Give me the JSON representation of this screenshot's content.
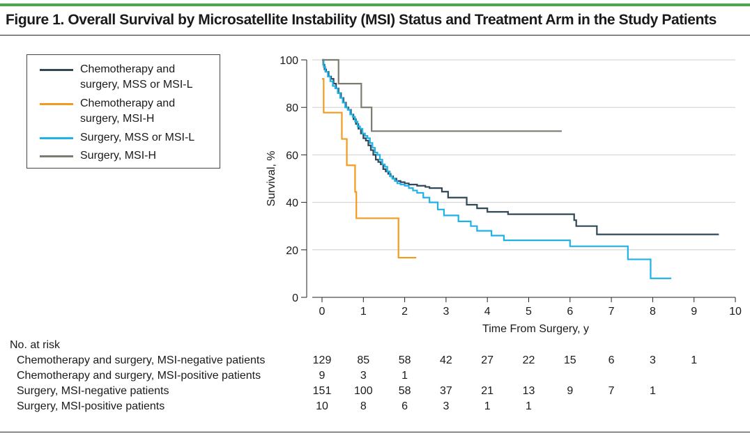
{
  "figure": {
    "title": "Figure 1. Overall Survival by Microsatellite Instability (MSI) Status and Treatment Arm in the Study Patients"
  },
  "legend": {
    "items": [
      {
        "label": "Chemotherapy and surgery, MSS or MSI-L",
        "color": "#2f4858"
      },
      {
        "label": "Chemotherapy and surgery, MSI-H",
        "color": "#f39a1f"
      },
      {
        "label": "Surgery, MSS or MSI-L",
        "color": "#1eb2e8"
      },
      {
        "label": "Surgery, MSI-H",
        "color": "#7d7a6e"
      }
    ]
  },
  "chart_data": {
    "type": "line",
    "title": "",
    "xlabel": "Time From Surgery, y",
    "ylabel": "Survival, %",
    "xlim": [
      0,
      10
    ],
    "ylim": [
      0,
      100
    ],
    "xticks": [
      0,
      1,
      2,
      3,
      4,
      5,
      6,
      7,
      8,
      9,
      10
    ],
    "yticks": [
      0,
      20,
      40,
      60,
      80,
      100
    ],
    "grid": true,
    "step": true,
    "series": [
      {
        "name": "Chemotherapy and surgery, MSS or MSI-L",
        "color": "#2f4858",
        "x": [
          0,
          0.03,
          0.06,
          0.1,
          0.16,
          0.22,
          0.28,
          0.34,
          0.4,
          0.46,
          0.52,
          0.58,
          0.64,
          0.7,
          0.76,
          0.82,
          0.88,
          0.94,
          1.0,
          1.06,
          1.12,
          1.18,
          1.24,
          1.3,
          1.36,
          1.42,
          1.48,
          1.54,
          1.6,
          1.66,
          1.72,
          1.8,
          1.9,
          2.0,
          2.1,
          2.3,
          2.5,
          2.6,
          2.9,
          3.05,
          3.5,
          3.75,
          4.0,
          4.5,
          6.1,
          6.15,
          6.65,
          9.6
        ],
        "y": [
          100,
          98,
          96,
          95,
          93,
          92,
          90,
          88,
          86,
          84,
          82,
          80,
          79,
          77,
          75,
          73,
          71,
          69,
          67,
          66,
          64,
          62,
          60,
          58,
          57,
          56,
          54,
          53,
          52,
          51,
          50,
          49,
          48.5,
          48,
          47.5,
          47,
          46.5,
          46,
          44.5,
          42,
          39,
          37.5,
          36,
          35,
          32.5,
          30,
          26.5,
          26.5
        ]
      },
      {
        "name": "Chemotherapy and surgery, MSI-H",
        "color": "#f39a1f",
        "x": [
          0,
          0.04,
          0.48,
          0.6,
          0.8,
          0.83,
          1.85,
          2.28
        ],
        "y": [
          92,
          77.8,
          66.7,
          55.6,
          44.4,
          33.3,
          16.7,
          16.7
        ]
      },
      {
        "name": "Surgery, MSS or MSI-L",
        "color": "#1eb2e8",
        "x": [
          0,
          0.04,
          0.08,
          0.14,
          0.2,
          0.26,
          0.32,
          0.38,
          0.44,
          0.5,
          0.56,
          0.62,
          0.68,
          0.74,
          0.8,
          0.86,
          0.92,
          0.98,
          1.04,
          1.1,
          1.16,
          1.22,
          1.28,
          1.34,
          1.4,
          1.46,
          1.52,
          1.58,
          1.64,
          1.7,
          1.76,
          1.82,
          1.9,
          2.0,
          2.1,
          2.2,
          2.3,
          2.45,
          2.6,
          2.8,
          2.95,
          3.3,
          3.6,
          3.75,
          4.1,
          4.4,
          6.0,
          7.4,
          7.95,
          8.45
        ],
        "y": [
          100,
          97,
          95,
          93,
          91,
          89,
          88,
          86,
          84,
          82,
          80,
          79,
          77,
          76,
          74,
          72,
          71,
          69,
          68,
          67,
          65,
          63,
          61,
          60,
          58,
          56,
          55,
          53,
          51,
          50,
          49,
          48,
          47.5,
          47,
          46,
          45,
          44,
          42,
          40,
          37,
          34.5,
          32,
          30,
          28,
          26,
          24,
          21.5,
          16,
          8,
          8
        ]
      },
      {
        "name": "Surgery, MSI-H",
        "color": "#7d7a6e",
        "x": [
          0,
          0.4,
          0.95,
          1.2,
          5.8
        ],
        "y": [
          100,
          90,
          80,
          70,
          70
        ]
      }
    ]
  },
  "risk_table": {
    "title": "No. at risk",
    "columns": [
      0,
      1,
      2,
      3,
      4,
      5,
      6,
      7,
      8,
      9
    ],
    "rows": [
      {
        "label": "Chemotherapy and surgery, MSI-negative patients",
        "counts": [
          "129",
          "85",
          "58",
          "42",
          "27",
          "22",
          "15",
          "6",
          "3",
          "1"
        ]
      },
      {
        "label": "Chemotherapy and surgery, MSI-positive patients",
        "counts": [
          "9",
          "3",
          "1",
          "",
          "",
          "",
          "",
          "",
          "",
          ""
        ]
      },
      {
        "label": "Surgery, MSI-negative patients",
        "counts": [
          "151",
          "100",
          "58",
          "37",
          "21",
          "13",
          "9",
          "7",
          "1",
          ""
        ]
      },
      {
        "label": "Surgery, MSI-positive patients",
        "counts": [
          "10",
          "8",
          "6",
          "3",
          "1",
          "1",
          "",
          "",
          "",
          ""
        ]
      }
    ]
  }
}
